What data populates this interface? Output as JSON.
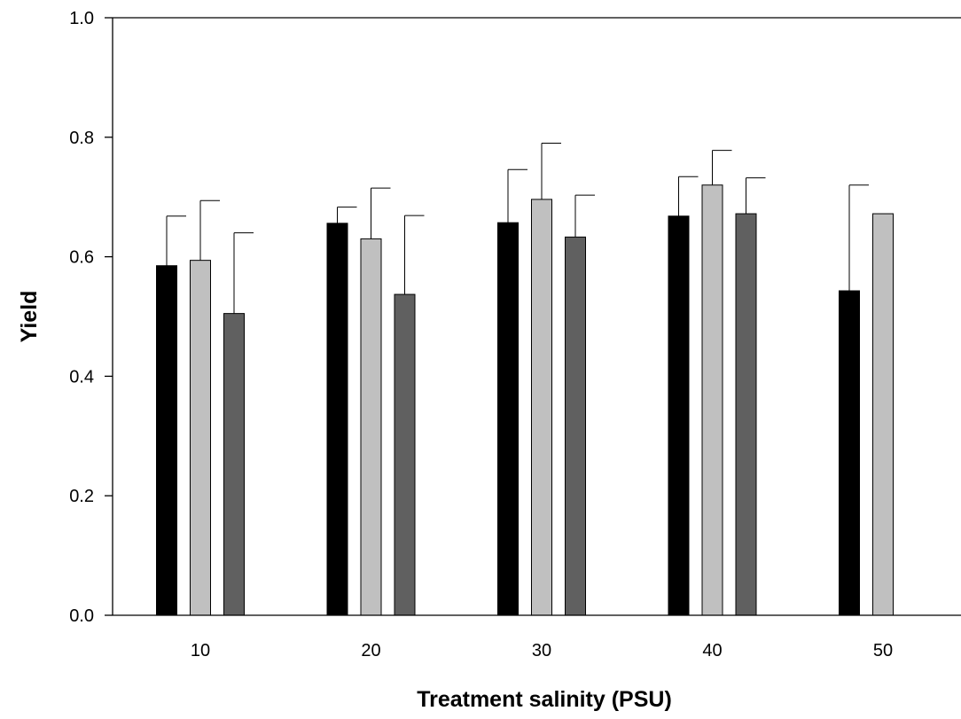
{
  "chart_data": {
    "type": "bar",
    "title": "",
    "xlabel": "Treatment salinity (PSU)",
    "ylabel": "Yield",
    "categories": [
      "10",
      "20",
      "30",
      "40",
      "50"
    ],
    "ylim": [
      0.0,
      1.0
    ],
    "yticks": [
      "0.0",
      "0.2",
      "0.4",
      "0.6",
      "0.8",
      "1.0"
    ],
    "grid": false,
    "legend": "none",
    "series": [
      {
        "color": "#000000",
        "values": [
          0.585,
          0.656,
          0.657,
          0.668,
          0.543
        ],
        "errors": [
          0.083,
          0.027,
          0.089,
          0.066,
          0.177
        ]
      },
      {
        "color": "#c0c0c0",
        "values": [
          0.594,
          0.63,
          0.696,
          0.72,
          0.672
        ],
        "errors": [
          0.1,
          0.085,
          0.094,
          0.058,
          null
        ]
      },
      {
        "color": "#606060",
        "values": [
          0.505,
          0.537,
          0.633,
          0.672,
          null
        ],
        "errors": [
          0.135,
          0.132,
          0.07,
          0.06,
          null
        ]
      }
    ]
  }
}
